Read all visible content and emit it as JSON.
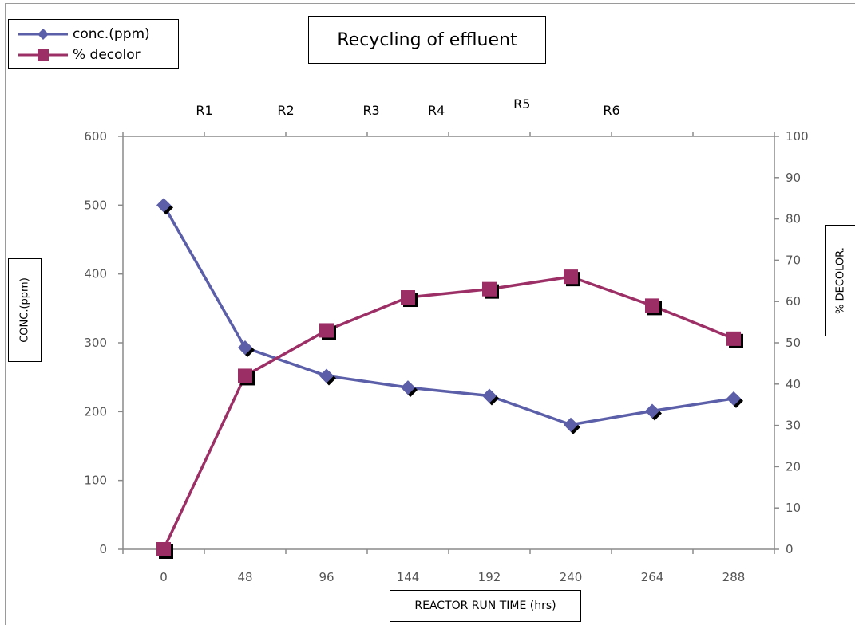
{
  "chart_data": {
    "type": "line",
    "title": "Recycling of effluent",
    "xlabel": "REACTOR RUN TIME (hrs)",
    "ylabel_left": "CONC.(ppm)",
    "ylabel_right": "% DECOLOR.",
    "categories": [
      "0",
      "48",
      "96",
      "144",
      "192",
      "240",
      "264",
      "288"
    ],
    "ylim_left": [
      0,
      600
    ],
    "yticks_left": [
      "0",
      "100",
      "200",
      "300",
      "400",
      "500",
      "600"
    ],
    "ylim_right": [
      0,
      100
    ],
    "yticks_right": [
      "0",
      "10",
      "20",
      "30",
      "40",
      "50",
      "60",
      "70",
      "80",
      "90",
      "100"
    ],
    "run_labels": [
      "R1",
      "R2",
      "R3",
      "R4",
      "R5",
      "R6"
    ],
    "legend_position": "top-left",
    "series": [
      {
        "name": "conc.(ppm)",
        "axis": "left",
        "marker": "diamond",
        "color": "#5b5ea8",
        "values": [
          500,
          293,
          252,
          235,
          223,
          181,
          201,
          219
        ]
      },
      {
        "name": "% decolor",
        "axis": "right",
        "marker": "square",
        "color": "#9c2f66",
        "values": [
          0,
          42,
          53,
          61,
          63,
          66,
          59,
          51
        ]
      }
    ]
  }
}
